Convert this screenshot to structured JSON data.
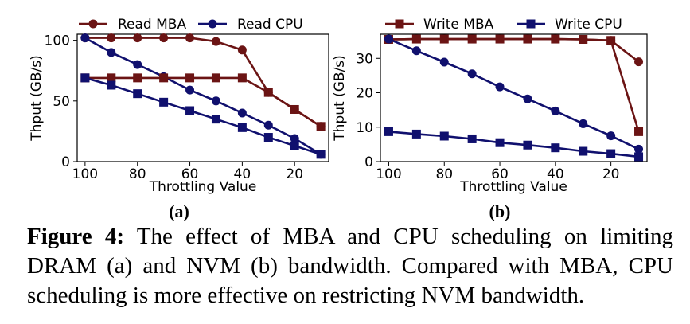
{
  "figure": {
    "caption_label": "Figure 4:",
    "caption_text": " The effect of MBA and CPU scheduling on limiting DRAM (a) and NVM (b) bandwidth. Compared with MBA, CPU scheduling is more effective on restricting NVM bandwidth."
  },
  "colors": {
    "mba": "#6b1414",
    "cpu": "#10106e"
  },
  "chart_data": [
    {
      "type": "line",
      "panel_label": "(a)",
      "xlabel": "Throttling Value",
      "ylabel": "Thput (GB/s)",
      "x": [
        100,
        90,
        80,
        70,
        60,
        50,
        40,
        30,
        20,
        10
      ],
      "xlim": [
        103,
        7
      ],
      "ylim": [
        0,
        105
      ],
      "xticks": [
        100,
        80,
        60,
        40,
        20
      ],
      "yticks": [
        0,
        50,
        100
      ],
      "legend": "top",
      "series": [
        {
          "name": "Read MBA",
          "marker": "circle",
          "color": "#6b1414",
          "values": [
            102,
            102,
            102,
            102,
            102,
            99,
            92,
            57,
            43,
            29
          ]
        },
        {
          "name": "Read CPU",
          "marker": "circle",
          "color": "#10106e",
          "values": [
            102,
            90,
            80,
            70,
            59,
            50,
            40,
            30,
            19,
            6
          ]
        },
        {
          "name": "",
          "marker": "square",
          "color": "#6b1414",
          "values": [
            69,
            69,
            69,
            69,
            69,
            69,
            69,
            57,
            43,
            29
          ]
        },
        {
          "name": "",
          "marker": "square",
          "color": "#10106e",
          "values": [
            69,
            63,
            56,
            49,
            42,
            35,
            28,
            20,
            13,
            6
          ]
        }
      ]
    },
    {
      "type": "line",
      "panel_label": "(b)",
      "xlabel": "Throttling Value",
      "ylabel": "Thput (GB/s)",
      "x": [
        100,
        90,
        80,
        70,
        60,
        50,
        40,
        30,
        20,
        10
      ],
      "xlim": [
        103,
        7
      ],
      "ylim": [
        0,
        37
      ],
      "xticks": [
        100,
        80,
        60,
        40,
        20
      ],
      "yticks": [
        0,
        10,
        20,
        30
      ],
      "legend": "top",
      "series": [
        {
          "name": "Write MBA",
          "marker": "square",
          "color": "#6b1414",
          "values": [
            35.5,
            35.6,
            35.6,
            35.6,
            35.6,
            35.6,
            35.6,
            35.5,
            35.2,
            8.7
          ]
        },
        {
          "name": "Write CPU",
          "marker": "square",
          "color": "#10106e",
          "values": [
            8.7,
            8.0,
            7.4,
            6.6,
            5.5,
            4.8,
            4.0,
            3.0,
            2.3,
            1.4
          ]
        },
        {
          "name": "",
          "marker": "circle",
          "color": "#6b1414",
          "values": [
            35.5,
            35.6,
            35.6,
            35.6,
            35.6,
            35.6,
            35.6,
            35.5,
            35.2,
            29
          ]
        },
        {
          "name": "",
          "marker": "circle",
          "color": "#10106e",
          "values": [
            35.6,
            32.2,
            28.9,
            25.5,
            21.7,
            18.2,
            14.7,
            11.0,
            7.5,
            3.6
          ]
        }
      ]
    }
  ]
}
